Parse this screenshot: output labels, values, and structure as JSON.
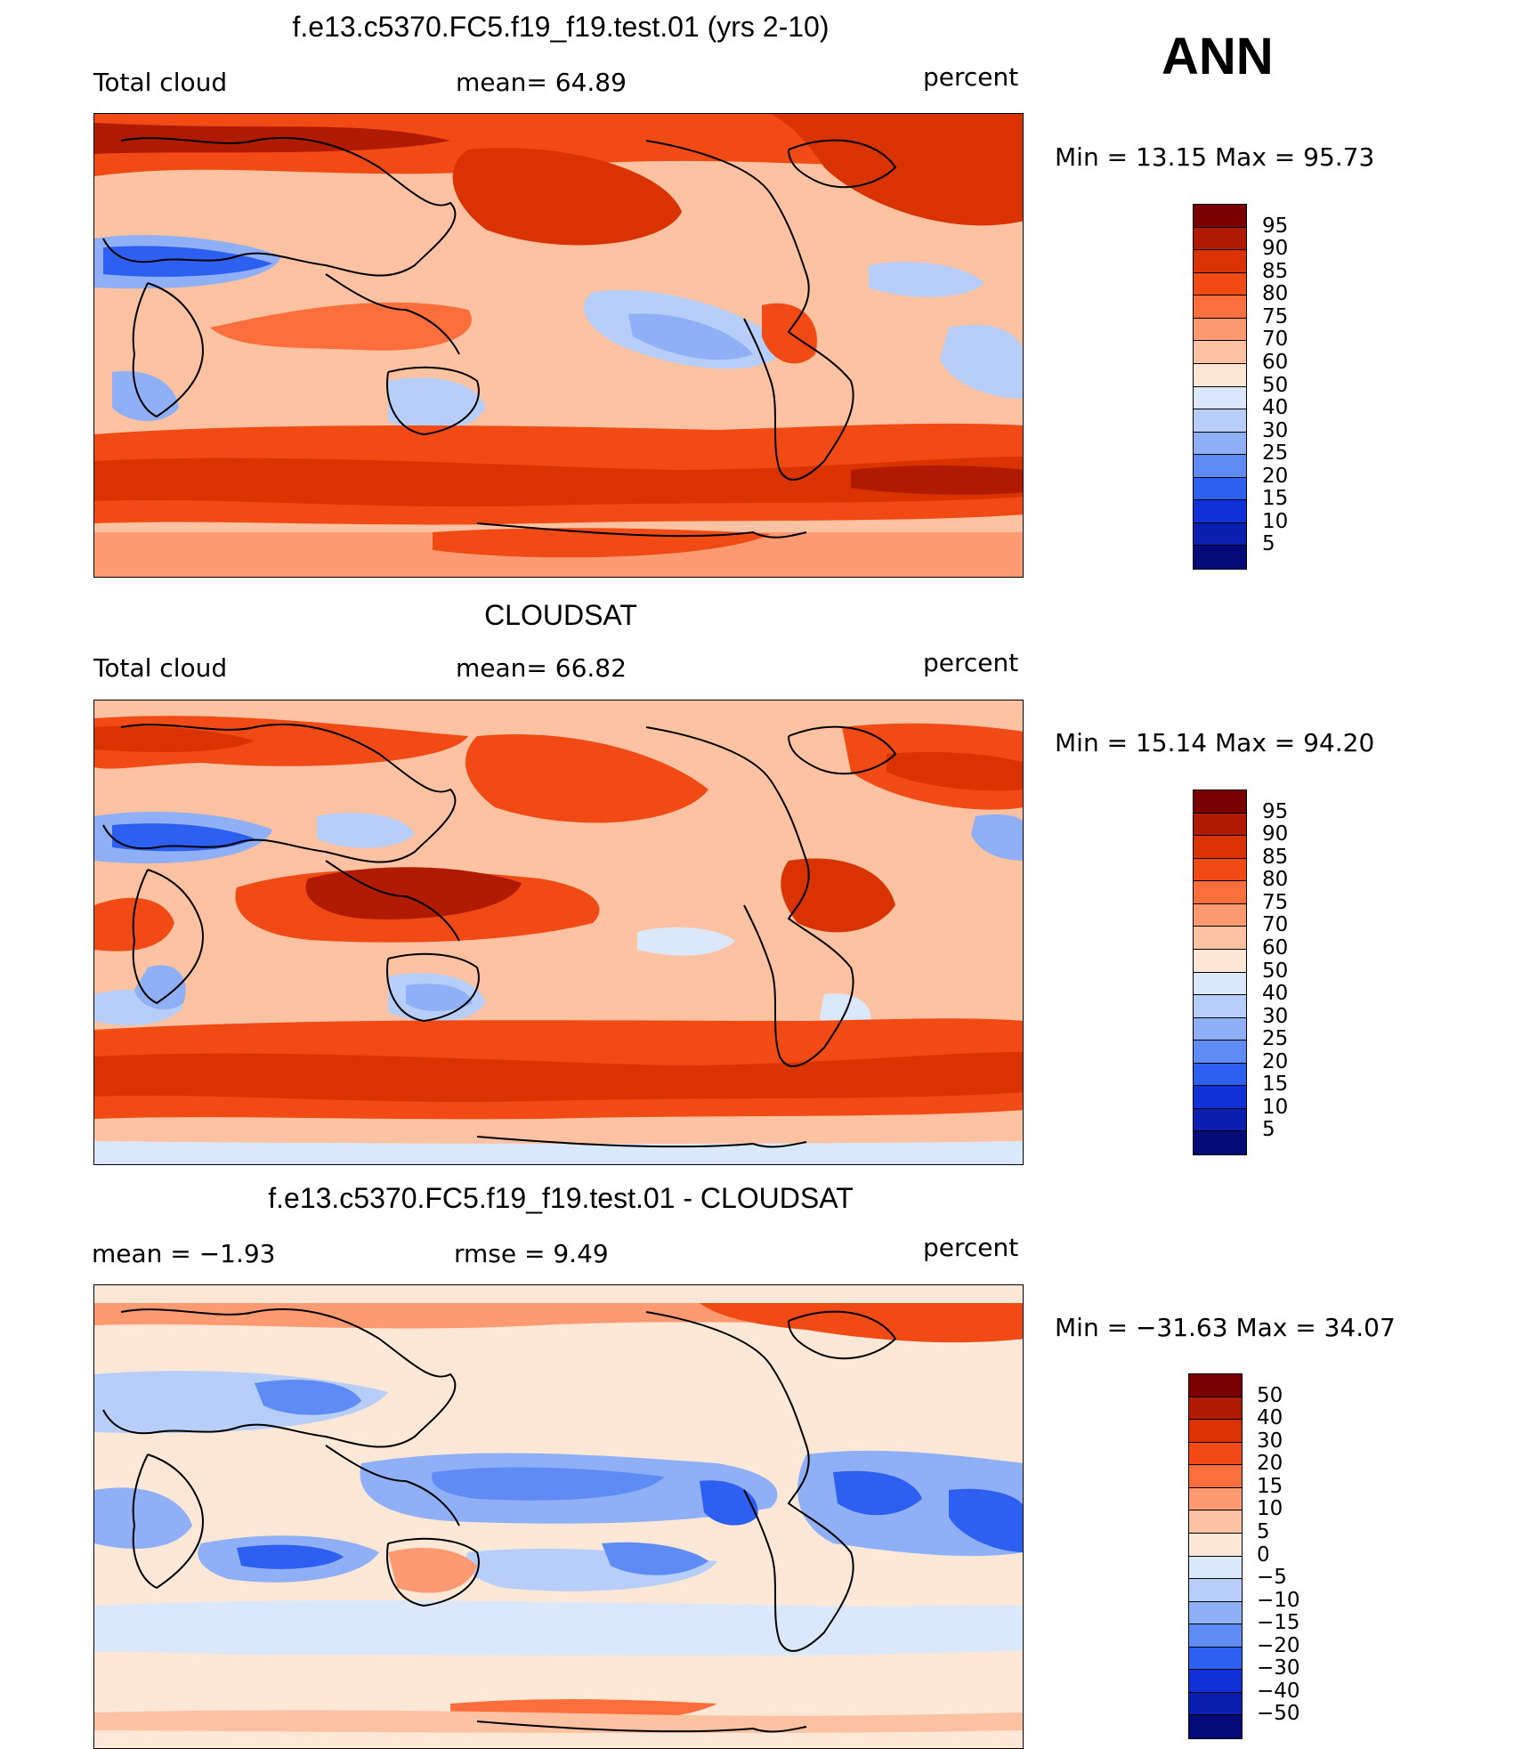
{
  "ann_label": "ANN",
  "units_word": "percent",
  "panels": [
    {
      "title": "f.e13.c5370.FC5.f19_f19.test.01 (yrs 2-10)",
      "left_label": "Total cloud",
      "center_label": "mean=   64.89",
      "right_label": "percent",
      "minmax": "Min =   13.15 Max =   95.73"
    },
    {
      "title": "CLOUDSAT",
      "left_label": "Total cloud",
      "center_label": "mean=   66.82",
      "right_label": "percent",
      "minmax": "Min =   15.14 Max =   94.20"
    },
    {
      "title": "f.e13.c5370.FC5.f19_f19.test.01 - CLOUDSAT",
      "left_label": "mean =   −1.93",
      "center_label": "rmse =    9.49",
      "right_label": "percent",
      "minmax": "Min = −31.63 Max =   34.07"
    }
  ],
  "colorbar_abs": {
    "labels": [
      "95",
      "90",
      "85",
      "80",
      "75",
      "70",
      "60",
      "50",
      "40",
      "30",
      "25",
      "20",
      "15",
      "10",
      "5"
    ],
    "colors": [
      "#7a0000",
      "#b01a00",
      "#d83300",
      "#f24a14",
      "#fc6e3c",
      "#fd9a72",
      "#fdc2a2",
      "#fde7d6",
      "#dbe8fb",
      "#b6cef8",
      "#8fb0f6",
      "#5e8cf4",
      "#2d5ff0",
      "#1030d8",
      "#0a1eb0",
      "#020a78"
    ]
  },
  "colorbar_diff": {
    "labels": [
      "50",
      "40",
      "30",
      "20",
      "15",
      "10",
      "5",
      "0",
      "−5",
      "−10",
      "−15",
      "−20",
      "−30",
      "−40",
      "−50"
    ],
    "colors": [
      "#7a0000",
      "#b01a00",
      "#d83300",
      "#f24a14",
      "#fc6e3c",
      "#fd9a72",
      "#fdc2a2",
      "#fde7d6",
      "#dbe8fb",
      "#b6cef8",
      "#8fb0f6",
      "#5e8cf4",
      "#2d5ff0",
      "#1030d8",
      "#0a1eb0",
      "#020a78"
    ]
  },
  "field_patterns": {
    "model": "storm-tracks-high-subtropics-low",
    "cloudsat": "storm-tracks-high-tropics-high",
    "diff": "mixed-blue-tropics"
  }
}
